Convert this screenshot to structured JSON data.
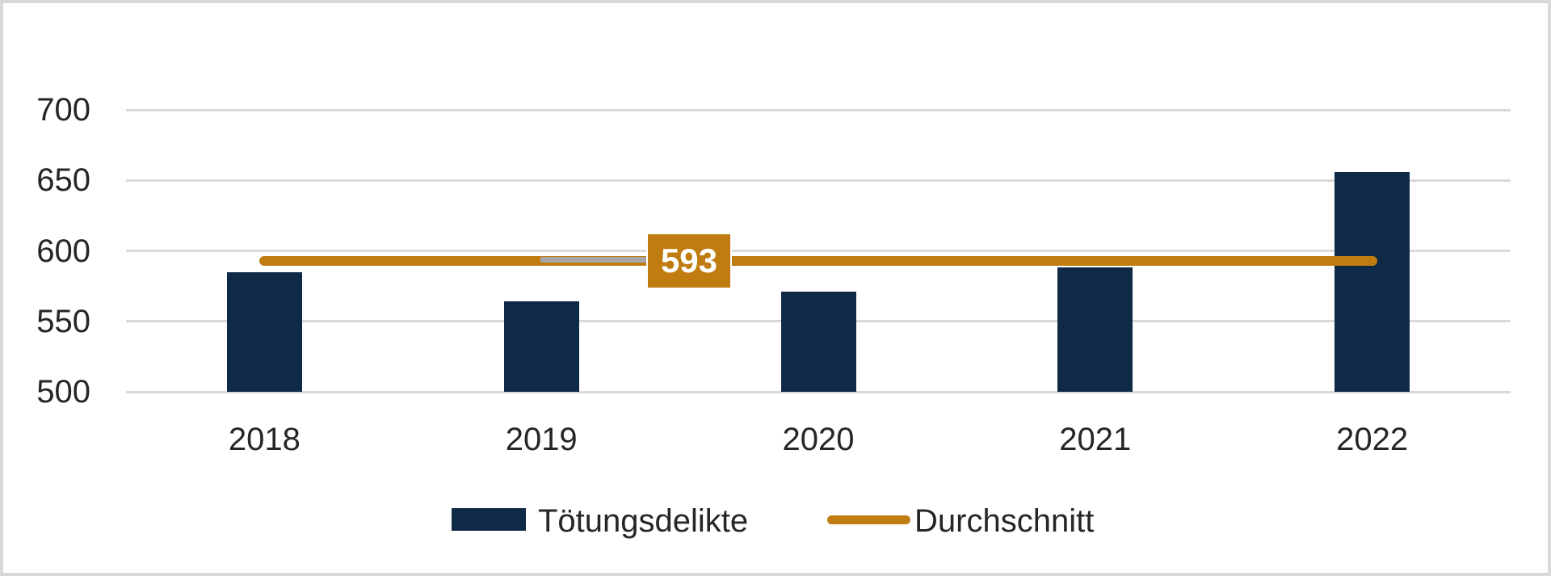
{
  "chart_data": {
    "type": "bar",
    "title": "",
    "xlabel": "",
    "ylabel": "",
    "categories": [
      "2018",
      "2019",
      "2020",
      "2021",
      "2022"
    ],
    "series": [
      {
        "name": "Tötungsdelikte",
        "type": "bar",
        "color": "#0e2a47",
        "values": [
          585,
          564,
          571,
          588,
          656
        ]
      },
      {
        "name": "Durchschnitt",
        "type": "line",
        "color": "#c07c10",
        "average": 593,
        "values": [
          593,
          593,
          593,
          593,
          593
        ]
      }
    ],
    "average_label": "593",
    "ylim": [
      500,
      700
    ],
    "yticks": [
      500,
      550,
      600,
      650,
      700
    ],
    "grid": "horizontal",
    "legend_position": "bottom-center"
  },
  "colors": {
    "bar": "#0e2a47",
    "average_line": "#c07c10",
    "gridline": "#d9d9d9",
    "frame_border": "#d9d9d9",
    "callout_background": "#c07c10",
    "callout_text": "#ffffff",
    "axis_text": "#262626",
    "gray_line_artifact": "#a6a6a6",
    "background": "#ffffff"
  },
  "legend": {
    "items": [
      {
        "label": "Tötungsdelikte",
        "swatch": "bar"
      },
      {
        "label": "Durchschnitt",
        "swatch": "line"
      }
    ]
  }
}
